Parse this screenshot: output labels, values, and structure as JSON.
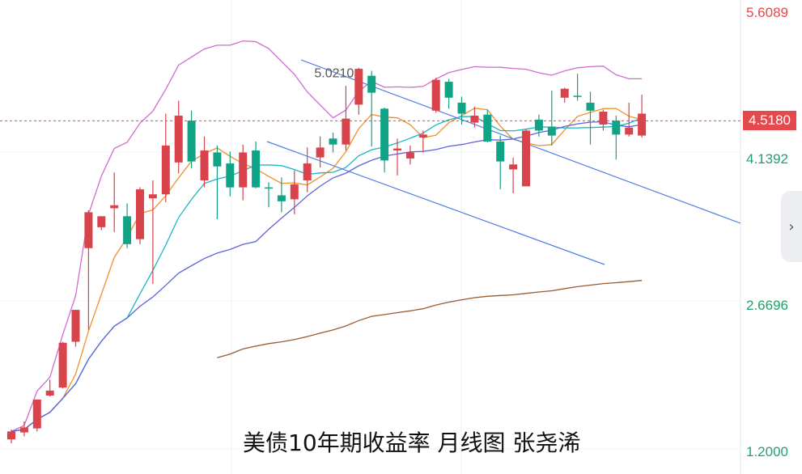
{
  "chart_data": {
    "type": "candlestick",
    "title": "美债10年期收益率 月线图 张尧浠",
    "y_axis": {
      "labels": [
        {
          "value": 5.6089,
          "text": "5.6089",
          "color": "#e5484d"
        },
        {
          "value": 4.1392,
          "text": "4.1392",
          "color": "#22a06b"
        },
        {
          "value": 2.6696,
          "text": "2.6696",
          "color": "#22a06b"
        },
        {
          "value": 1.2,
          "text": "1.2000",
          "color": "#22a06b"
        }
      ],
      "range": [
        1.05,
        5.75
      ]
    },
    "current_price": {
      "value": 4.518,
      "text": "4.5180"
    },
    "high_annotation": {
      "value": 5.021,
      "text": "5.0210"
    },
    "candles": [
      [
        1.32,
        1.4,
        1.28,
        1.42
      ],
      [
        1.39,
        1.44,
        1.35,
        1.5
      ],
      [
        1.43,
        1.72,
        1.4,
        1.72
      ],
      [
        1.76,
        1.81,
        1.75,
        1.92
      ],
      [
        1.84,
        2.29,
        1.83,
        2.3
      ],
      [
        2.3,
        2.62,
        2.25,
        2.62
      ],
      [
        3.24,
        3.6,
        2.42,
        3.62
      ],
      [
        3.45,
        3.56,
        3.42,
        3.56
      ],
      [
        3.64,
        3.67,
        3.4,
        4.0
      ],
      [
        3.56,
        3.28,
        3.24,
        3.69
      ],
      [
        3.33,
        3.83,
        3.28,
        3.85
      ],
      [
        3.74,
        3.78,
        2.88,
        3.92
      ],
      [
        3.78,
        4.27,
        3.7,
        4.59
      ],
      [
        4.1,
        4.57,
        3.99,
        4.72
      ],
      [
        4.52,
        4.11,
        4.04,
        4.62
      ],
      [
        3.92,
        4.22,
        3.85,
        4.36
      ],
      [
        4.2,
        4.06,
        3.53,
        4.27
      ],
      [
        4.09,
        3.85,
        3.76,
        4.21
      ],
      [
        3.85,
        4.2,
        3.72,
        4.28
      ],
      [
        4.22,
        3.85,
        3.84,
        4.31
      ],
      [
        3.85,
        3.84,
        3.65,
        3.9
      ],
      [
        3.77,
        3.71,
        3.6,
        3.95
      ],
      [
        3.73,
        3.88,
        3.58,
        4.02
      ],
      [
        3.92,
        4.09,
        3.8,
        4.25
      ],
      [
        4.15,
        4.25,
        4.05,
        4.36
      ],
      [
        4.34,
        4.28,
        4.2,
        4.4
      ],
      [
        4.28,
        4.54,
        4.22,
        4.87
      ],
      [
        4.68,
        5.04,
        4.58,
        5.05
      ],
      [
        4.97,
        4.8,
        4.26,
        5.02
      ],
      [
        4.64,
        4.12,
        4.0,
        4.65
      ],
      [
        4.22,
        4.24,
        3.97,
        4.34
      ],
      [
        4.14,
        4.2,
        4.08,
        4.27
      ],
      [
        4.35,
        4.38,
        4.2,
        4.42
      ],
      [
        4.62,
        4.93,
        4.6,
        4.95
      ],
      [
        4.91,
        4.75,
        4.64,
        4.94
      ],
      [
        4.7,
        4.59,
        4.48,
        4.76
      ],
      [
        4.5,
        4.57,
        4.45,
        4.66
      ],
      [
        4.58,
        4.31,
        4.3,
        4.63
      ],
      [
        4.31,
        4.11,
        3.83,
        4.37
      ],
      [
        4.03,
        4.08,
        3.79,
        4.15
      ],
      [
        3.86,
        4.42,
        3.88,
        4.44
      ],
      [
        4.53,
        4.42,
        4.36,
        4.58
      ],
      [
        4.46,
        4.37,
        4.27,
        4.82
      ],
      [
        4.75,
        4.84,
        4.7,
        4.85
      ],
      [
        4.77,
        4.76,
        4.72,
        4.99
      ],
      [
        4.7,
        4.62,
        4.28,
        4.81
      ],
      [
        4.48,
        4.61,
        4.42,
        4.63
      ],
      [
        4.52,
        4.38,
        4.13,
        4.57
      ],
      [
        4.38,
        4.45,
        4.36,
        4.7
      ],
      [
        4.37,
        4.59,
        4.35,
        4.78
      ]
    ],
    "ma_colors": {
      "ma5": "#f0902a",
      "ma10": "#1ab5c4",
      "ma20": "#5e63d9",
      "ma60": "#9b5a2e",
      "boll_upper": "#d26bd0"
    },
    "trendline_color": "#4f7fe0",
    "grid": true
  },
  "ui": {
    "side_tab_icon": "chevron-right-icon",
    "side_tab_glyph": "›"
  }
}
